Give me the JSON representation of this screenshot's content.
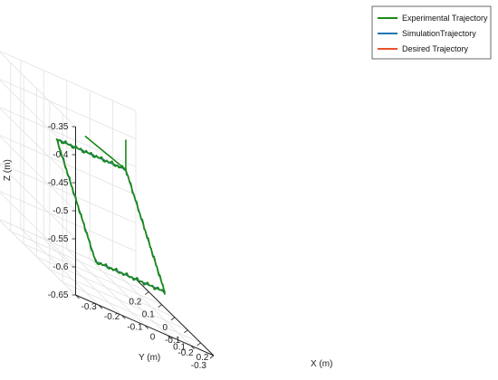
{
  "chart_data": {
    "type": "line",
    "projection": "3d",
    "grid": true,
    "legend_position": "top-right",
    "xlabel": "X (m)",
    "ylabel": "Y (m)",
    "zlabel": "Z (m)",
    "xlim": [
      -0.3,
      0.3
    ],
    "ylim": [
      -0.3,
      0.3
    ],
    "zlim": [
      -0.65,
      -0.35
    ],
    "x_ticks": [
      "-0.3",
      "-0.2",
      "-0.1",
      "0",
      "0.1",
      "0.2"
    ],
    "y_ticks": [
      "-0.3",
      "-0.2",
      "-0.1",
      "0",
      "0.1",
      "0.2"
    ],
    "z_ticks": [
      "-0.35",
      "-0.4",
      "-0.45",
      "-0.5",
      "-0.55",
      "-0.6",
      "-0.65"
    ],
    "x_tick_values": [
      -0.3,
      -0.2,
      -0.1,
      0,
      0.1,
      0.2
    ],
    "y_tick_values": [
      -0.3,
      -0.2,
      -0.1,
      0,
      0.1,
      0.2
    ],
    "z_tick_values": [
      -0.35,
      -0.4,
      -0.45,
      -0.5,
      -0.55,
      -0.6,
      -0.65
    ],
    "series": [
      {
        "name": "Experimental Trajectory",
        "color": "#1a8a1a",
        "points": [
          {
            "x": 0.2,
            "y": 0.2,
            "z": -0.45
          },
          {
            "x": -0.1,
            "y": 0.2,
            "z": -0.45
          },
          {
            "x": -0.1,
            "y": -0.1,
            "z": -0.6
          },
          {
            "x": 0.2,
            "y": -0.1,
            "z": -0.6
          },
          {
            "x": 0.2,
            "y": 0.2,
            "z": -0.45
          }
        ]
      },
      {
        "name": "SimulationTrajectory",
        "color": "#1f77b4",
        "points": [
          {
            "x": 0.2,
            "y": 0.2,
            "z": -0.45
          },
          {
            "x": -0.1,
            "y": 0.2,
            "z": -0.45
          },
          {
            "x": -0.1,
            "y": -0.1,
            "z": -0.6
          },
          {
            "x": 0.2,
            "y": -0.1,
            "z": -0.6
          },
          {
            "x": 0.2,
            "y": 0.2,
            "z": -0.45
          }
        ]
      },
      {
        "name": "Desired Trajectory",
        "color": "#e8512a",
        "points": [
          {
            "x": 0.2,
            "y": 0.2,
            "z": -0.45
          },
          {
            "x": -0.1,
            "y": 0.2,
            "z": -0.45
          },
          {
            "x": -0.1,
            "y": -0.1,
            "z": -0.6
          },
          {
            "x": 0.2,
            "y": -0.1,
            "z": -0.6
          },
          {
            "x": 0.2,
            "y": 0.2,
            "z": -0.45
          }
        ]
      }
    ],
    "frame_axes_color": "#1a8a1a"
  }
}
